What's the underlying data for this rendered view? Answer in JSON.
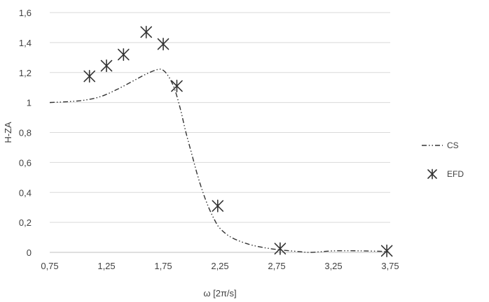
{
  "chart_data": {
    "type": "scatter",
    "title": "",
    "xlabel": "ω [2π/s]",
    "ylabel": "H-ZA",
    "xlim": [
      0.75,
      3.75
    ],
    "ylim": [
      0,
      1.6
    ],
    "x_ticks": [
      0.75,
      1.25,
      1.75,
      2.25,
      2.75,
      3.25,
      3.75
    ],
    "x_tick_labels": [
      "0,75",
      "1,25",
      "1,75",
      "2,25",
      "2,75",
      "3,25",
      "3,75"
    ],
    "y_ticks": [
      0,
      0.2,
      0.4,
      0.6,
      0.8,
      1,
      1.2,
      1.4,
      1.6
    ],
    "y_tick_labels": [
      "0",
      "0,2",
      "0,4",
      "0,6",
      "0,8",
      "1",
      "1,2",
      "1,4",
      "1,6"
    ],
    "grid": "horizontal",
    "legend_position": "right",
    "series": [
      {
        "name": "CS",
        "kind": "line",
        "style": "dash-dot-dot",
        "color": "#333333",
        "x": [
          0.75,
          0.9,
          1.05,
          1.2,
          1.35,
          1.5,
          1.6,
          1.7,
          1.75,
          1.8,
          1.85,
          1.9,
          1.95,
          2.0,
          2.05,
          2.1,
          2.15,
          2.2,
          2.25,
          2.35,
          2.5,
          2.65,
          2.8,
          2.95,
          3.05,
          3.25,
          3.5,
          3.75
        ],
        "y": [
          1.0,
          1.005,
          1.015,
          1.04,
          1.09,
          1.15,
          1.19,
          1.22,
          1.215,
          1.17,
          1.09,
          0.96,
          0.8,
          0.66,
          0.52,
          0.4,
          0.3,
          0.22,
          0.16,
          0.1,
          0.055,
          0.03,
          0.015,
          0.005,
          0.0,
          0.01,
          0.01,
          0.005
        ]
      },
      {
        "name": "EFD",
        "kind": "marker",
        "marker": "asterisk",
        "color": "#333333",
        "x": [
          1.1,
          1.25,
          1.4,
          1.6,
          1.75,
          1.87,
          2.23,
          2.78,
          3.72
        ],
        "y": [
          1.175,
          1.245,
          1.32,
          1.47,
          1.39,
          1.11,
          0.31,
          0.025,
          0.01
        ]
      }
    ]
  }
}
